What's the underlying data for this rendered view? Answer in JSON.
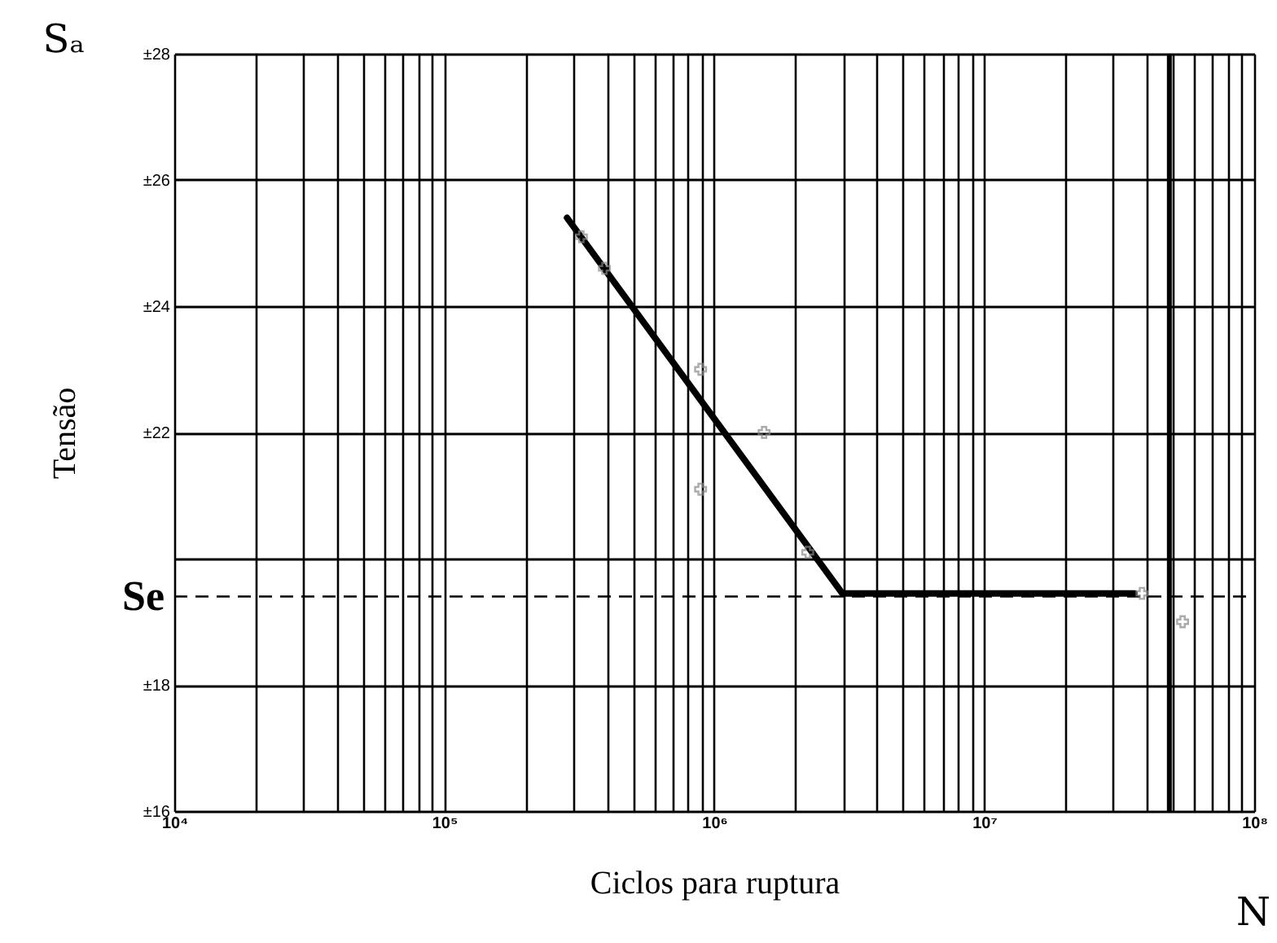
{
  "chart_data": {
    "type": "line",
    "xlabel": "Ciclos para ruptura",
    "ylabel": "Tensão",
    "annotations": [
      "Sₐ",
      "N"
    ],
    "log": "x",
    "grid": true,
    "xlim": [
      10000,
      100000000
    ],
    "xticks": [
      {
        "value": 10000,
        "label": "10⁴"
      },
      {
        "value": 20000,
        "label": null
      },
      {
        "value": 30000,
        "label": null
      },
      {
        "value": 40000,
        "label": null
      },
      {
        "value": 50000,
        "label": null
      },
      {
        "value": 60000,
        "label": null
      },
      {
        "value": 70000,
        "label": null
      },
      {
        "value": 80000,
        "label": null
      },
      {
        "value": 90000,
        "label": null
      },
      {
        "value": 100000,
        "label": "10⁵"
      },
      {
        "value": 200000,
        "label": null
      },
      {
        "value": 300000,
        "label": null
      },
      {
        "value": 400000,
        "label": null
      },
      {
        "value": 500000,
        "label": null
      },
      {
        "value": 600000,
        "label": null
      },
      {
        "value": 700000,
        "label": null
      },
      {
        "value": 800000,
        "label": null
      },
      {
        "value": 900000,
        "label": null
      },
      {
        "value": 1000000,
        "label": "10⁶"
      },
      {
        "value": 2000000,
        "label": null
      },
      {
        "value": 3000000,
        "label": null
      },
      {
        "value": 4000000,
        "label": null
      },
      {
        "value": 5000000,
        "label": null
      },
      {
        "value": 6000000,
        "label": null
      },
      {
        "value": 7000000,
        "label": null
      },
      {
        "value": 8000000,
        "label": null
      },
      {
        "value": 9000000,
        "label": null
      },
      {
        "value": 10000000,
        "label": "10⁷"
      },
      {
        "value": 20000000,
        "label": null
      },
      {
        "value": 30000000,
        "label": null
      },
      {
        "value": 40000000,
        "label": null
      },
      {
        "value": 50000000,
        "label": null
      },
      {
        "value": 60000000,
        "label": null
      },
      {
        "value": 70000000,
        "label": null
      },
      {
        "value": 80000000,
        "label": null
      },
      {
        "value": 90000000,
        "label": null
      },
      {
        "value": 100000000,
        "label": "10⁸"
      }
    ],
    "ylim": [
      16,
      28
    ],
    "yticks": [
      {
        "value": 16,
        "label": "±16"
      },
      {
        "value": 18,
        "label": "±18"
      },
      {
        "value": 20,
        "label": null
      },
      {
        "value": 22,
        "label": "±22"
      },
      {
        "value": 24,
        "label": "±24"
      },
      {
        "value": 26,
        "label": "±26"
      },
      {
        "value": 28,
        "label": "±28"
      }
    ],
    "series": [
      {
        "color": "#000000",
        "marker": "none",
        "line_style": "solid",
        "x": [
          285000,
          2980000,
          36000000
        ],
        "values": [
          25.4,
          19.45,
          19.45
        ]
      },
      {
        "type": "scatter",
        "color": "#888888",
        "marker": "cross",
        "x": [
          322000,
          392000,
          890000,
          1530000,
          890000,
          2220000,
          38400000,
          54300000
        ],
        "values": [
          25.1,
          24.6,
          23.0,
          22.0,
          21.1,
          20.1,
          19.45,
          19.0
        ]
      }
    ],
    "ref_lines": [
      {
        "axis": "y",
        "value": 19.4,
        "label": "Se",
        "line_style": "dashed",
        "color": "#000000"
      },
      {
        "axis": "x",
        "value": 48500000,
        "label": null,
        "line_style": "solid",
        "color": "#000000"
      }
    ]
  }
}
